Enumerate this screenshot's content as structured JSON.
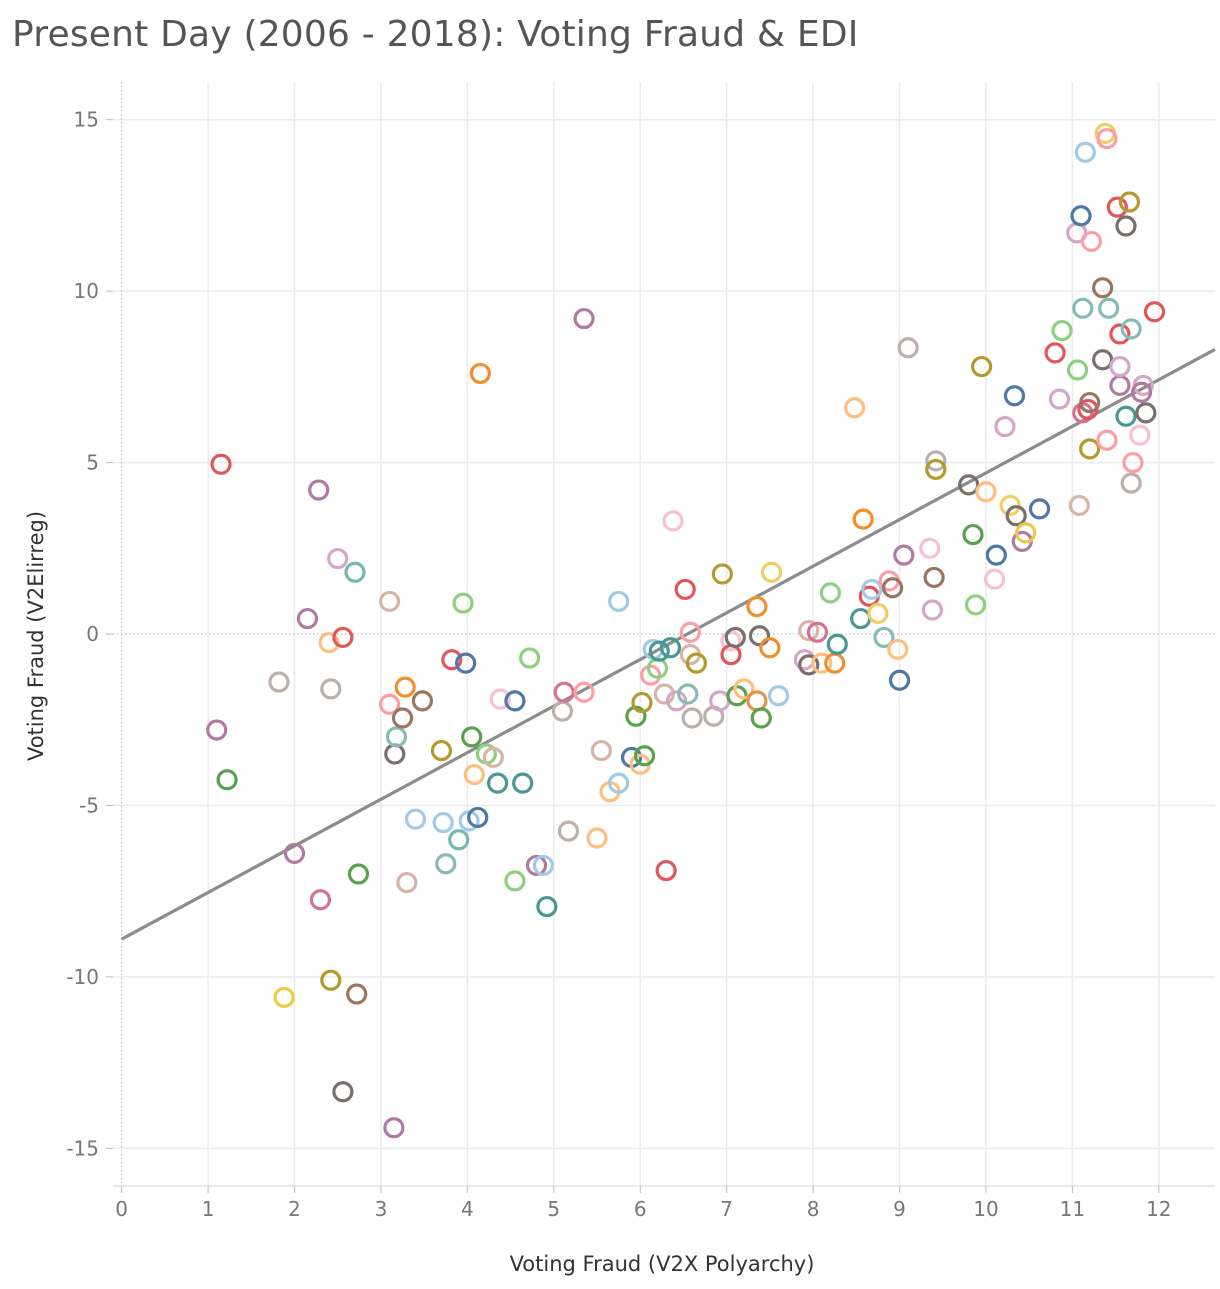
{
  "title": "Present Day (2006 - 2018): Voting Fraud & EDI",
  "colors": {
    "palette": [
      "#4e79a7",
      "#f28e2b",
      "#e15759",
      "#76b7b2",
      "#59a14f",
      "#edc948",
      "#b07aa1",
      "#ff9da7",
      "#9c755f",
      "#bab0ac",
      "#a0cbe8",
      "#ffbe7d",
      "#8cd17d",
      "#86bcb6",
      "#f1ce63",
      "#d4a6c8",
      "#fabfd2",
      "#d7b5a6",
      "#499894",
      "#79706e",
      "#b6992d",
      "#d37295",
      "#e49444"
    ],
    "trend": "#8c8c8c",
    "grid": "#ebebeb"
  },
  "chart_data": {
    "type": "scatter",
    "title": "Present Day (2006 - 2018): Voting Fraud & EDI",
    "xlabel": "Voting Fraud (V2X Polyarchy)",
    "ylabel": "Voting Fraud (V2Elirreg)",
    "xlim": [
      -0.1,
      12.65
    ],
    "ylim": [
      -16.1,
      16.1
    ],
    "xticks": [
      "0",
      "1",
      "2",
      "3",
      "4",
      "5",
      "6",
      "7",
      "8",
      "9",
      "10",
      "11",
      "12"
    ],
    "yticks": [
      "15",
      "10",
      "5",
      "0",
      "-5",
      "-10",
      "-15"
    ],
    "trend_line": {
      "x": [
        0,
        12.65
      ],
      "y": [
        -8.9,
        8.3
      ]
    },
    "points": [
      [
        1.15,
        4.95,
        2
      ],
      [
        1.1,
        -2.8,
        6
      ],
      [
        1.22,
        -4.25,
        4
      ],
      [
        1.82,
        -1.4,
        9
      ],
      [
        1.88,
        -10.6,
        5
      ],
      [
        2.0,
        -6.4,
        6
      ],
      [
        2.15,
        0.45,
        6
      ],
      [
        2.28,
        4.2,
        6
      ],
      [
        2.3,
        -7.75,
        21
      ],
      [
        2.4,
        -0.25,
        11
      ],
      [
        2.42,
        -1.6,
        9
      ],
      [
        2.42,
        -10.1,
        20
      ],
      [
        2.5,
        2.2,
        15
      ],
      [
        2.56,
        -0.1,
        2
      ],
      [
        2.56,
        -13.35,
        19
      ],
      [
        2.7,
        1.8,
        3
      ],
      [
        2.72,
        -10.5,
        8
      ],
      [
        2.74,
        -7.0,
        4
      ],
      [
        3.1,
        0.95,
        17
      ],
      [
        3.1,
        -2.05,
        7
      ],
      [
        3.15,
        -14.4,
        6
      ],
      [
        3.16,
        -3.5,
        19
      ],
      [
        3.18,
        -3.0,
        13
      ],
      [
        3.25,
        -2.45,
        8
      ],
      [
        3.28,
        -1.55,
        1
      ],
      [
        3.3,
        -7.25,
        17
      ],
      [
        3.4,
        -5.4,
        10
      ],
      [
        3.48,
        -1.95,
        8
      ],
      [
        3.7,
        -3.4,
        20
      ],
      [
        3.72,
        -5.5,
        10
      ],
      [
        3.75,
        -6.7,
        13
      ],
      [
        3.82,
        -0.75,
        2
      ],
      [
        3.9,
        -6.0,
        3
      ],
      [
        3.95,
        0.9,
        12
      ],
      [
        3.98,
        -0.85,
        0
      ],
      [
        4.02,
        -5.45,
        10
      ],
      [
        4.05,
        -3.0,
        4
      ],
      [
        4.08,
        -4.1,
        11
      ],
      [
        4.12,
        -5.35,
        0
      ],
      [
        4.15,
        7.6,
        1
      ],
      [
        4.22,
        -3.5,
        12
      ],
      [
        4.3,
        -3.6,
        17
      ],
      [
        4.35,
        -4.35,
        18
      ],
      [
        4.38,
        -1.9,
        16
      ],
      [
        4.55,
        -1.95,
        0
      ],
      [
        4.55,
        -7.2,
        12
      ],
      [
        4.64,
        -4.35,
        18
      ],
      [
        4.72,
        -0.7,
        12
      ],
      [
        4.8,
        -6.75,
        6
      ],
      [
        4.88,
        -6.75,
        10
      ],
      [
        4.92,
        -7.95,
        18
      ],
      [
        5.1,
        -2.25,
        9
      ],
      [
        5.12,
        -1.7,
        21
      ],
      [
        5.17,
        -5.75,
        9
      ],
      [
        5.35,
        9.2,
        6
      ],
      [
        5.35,
        -1.7,
        7
      ],
      [
        5.5,
        -5.95,
        11
      ],
      [
        5.55,
        -3.4,
        17
      ],
      [
        5.65,
        -4.6,
        11
      ],
      [
        5.75,
        -4.35,
        10
      ],
      [
        5.75,
        0.95,
        10
      ],
      [
        5.9,
        -3.6,
        0
      ],
      [
        5.95,
        -2.4,
        4
      ],
      [
        6.0,
        -3.8,
        11
      ],
      [
        6.02,
        -2.0,
        20
      ],
      [
        6.05,
        -3.55,
        4
      ],
      [
        6.12,
        -1.2,
        7
      ],
      [
        6.15,
        -0.45,
        10
      ],
      [
        6.2,
        -1.0,
        12
      ],
      [
        6.22,
        -0.5,
        18
      ],
      [
        6.28,
        -1.75,
        17
      ],
      [
        6.3,
        -6.9,
        2
      ],
      [
        6.35,
        -0.4,
        18
      ],
      [
        6.38,
        3.3,
        16
      ],
      [
        6.42,
        -1.95,
        15
      ],
      [
        6.52,
        1.3,
        2
      ],
      [
        6.55,
        -1.75,
        13
      ],
      [
        6.58,
        0.05,
        7
      ],
      [
        6.58,
        -0.6,
        17
      ],
      [
        6.6,
        -2.45,
        9
      ],
      [
        6.65,
        -0.85,
        20
      ],
      [
        6.85,
        -2.4,
        9
      ],
      [
        6.92,
        -1.95,
        15
      ],
      [
        6.95,
        1.75,
        20
      ],
      [
        7.05,
        -0.2,
        16
      ],
      [
        7.05,
        -0.6,
        2
      ],
      [
        7.1,
        -0.1,
        19
      ],
      [
        7.12,
        -1.8,
        4
      ],
      [
        7.2,
        -1.6,
        11
      ],
      [
        7.35,
        0.8,
        1
      ],
      [
        7.35,
        -1.95,
        22
      ],
      [
        7.38,
        -0.05,
        19
      ],
      [
        7.4,
        -2.45,
        4
      ],
      [
        7.5,
        -0.4,
        1
      ],
      [
        7.52,
        1.8,
        14
      ],
      [
        7.6,
        -1.8,
        10
      ],
      [
        7.9,
        -0.75,
        15
      ],
      [
        7.95,
        0.1,
        17
      ],
      [
        7.95,
        -0.9,
        19
      ],
      [
        8.05,
        0.05,
        21
      ],
      [
        8.1,
        -0.85,
        11
      ],
      [
        8.2,
        1.2,
        12
      ],
      [
        8.25,
        -0.85,
        1
      ],
      [
        8.28,
        -0.3,
        18
      ],
      [
        8.48,
        6.6,
        11
      ],
      [
        8.55,
        0.45,
        18
      ],
      [
        8.58,
        3.35,
        1
      ],
      [
        8.65,
        1.1,
        2
      ],
      [
        8.68,
        1.3,
        10
      ],
      [
        8.75,
        0.6,
        14
      ],
      [
        8.82,
        -0.1,
        13
      ],
      [
        8.88,
        1.55,
        7
      ],
      [
        8.92,
        1.35,
        8
      ],
      [
        8.98,
        -0.45,
        11
      ],
      [
        9.0,
        -1.35,
        0
      ],
      [
        9.05,
        2.3,
        6
      ],
      [
        9.1,
        8.35,
        9
      ],
      [
        9.35,
        2.5,
        16
      ],
      [
        9.38,
        0.7,
        15
      ],
      [
        9.4,
        1.65,
        8
      ],
      [
        9.42,
        5.05,
        9
      ],
      [
        9.42,
        4.8,
        20
      ],
      [
        9.8,
        4.35,
        19
      ],
      [
        9.85,
        2.9,
        4
      ],
      [
        9.88,
        0.85,
        12
      ],
      [
        9.95,
        7.8,
        20
      ],
      [
        10.0,
        4.15,
        11
      ],
      [
        10.1,
        1.6,
        16
      ],
      [
        10.12,
        2.3,
        0
      ],
      [
        10.22,
        6.05,
        15
      ],
      [
        10.28,
        3.75,
        14
      ],
      [
        10.33,
        6.95,
        0
      ],
      [
        10.35,
        3.45,
        19
      ],
      [
        10.42,
        2.7,
        6
      ],
      [
        10.46,
        2.95,
        5
      ],
      [
        10.62,
        3.65,
        0
      ],
      [
        10.8,
        8.2,
        2
      ],
      [
        10.85,
        6.85,
        15
      ],
      [
        10.88,
        8.85,
        12
      ],
      [
        11.05,
        11.7,
        15
      ],
      [
        11.06,
        7.7,
        12
      ],
      [
        11.08,
        3.75,
        17
      ],
      [
        11.1,
        12.2,
        0
      ],
      [
        11.12,
        9.5,
        13
      ],
      [
        11.12,
        6.45,
        21
      ],
      [
        11.15,
        14.05,
        10
      ],
      [
        11.18,
        6.55,
        2
      ],
      [
        11.2,
        6.75,
        8
      ],
      [
        11.2,
        5.4,
        20
      ],
      [
        11.22,
        11.45,
        7
      ],
      [
        11.35,
        8.0,
        19
      ],
      [
        11.35,
        10.1,
        8
      ],
      [
        11.38,
        14.6,
        14
      ],
      [
        11.4,
        14.45,
        7
      ],
      [
        11.4,
        5.65,
        7
      ],
      [
        11.42,
        9.5,
        13
      ],
      [
        11.52,
        12.45,
        2
      ],
      [
        11.55,
        7.25,
        6
      ],
      [
        11.55,
        7.8,
        15
      ],
      [
        11.55,
        8.75,
        2
      ],
      [
        11.62,
        11.9,
        19
      ],
      [
        11.62,
        6.35,
        18
      ],
      [
        11.66,
        12.6,
        20
      ],
      [
        11.68,
        8.9,
        13
      ],
      [
        11.68,
        4.4,
        9
      ],
      [
        11.7,
        5.0,
        7
      ],
      [
        11.78,
        5.8,
        16
      ],
      [
        11.82,
        7.25,
        15
      ],
      [
        11.8,
        7.05,
        6
      ],
      [
        11.85,
        6.45,
        19
      ],
      [
        11.95,
        9.4,
        2
      ]
    ]
  }
}
